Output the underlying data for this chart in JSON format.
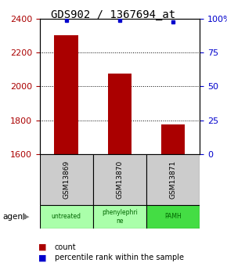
{
  "title": "GDS902 / 1367694_at",
  "categories": [
    "GSM13869",
    "GSM13870",
    "GSM13871"
  ],
  "bar_values": [
    2305,
    2075,
    1775
  ],
  "percentile_values": [
    99.0,
    99.0,
    97.5
  ],
  "ylim_left": [
    1600,
    2400
  ],
  "ylim_right": [
    0,
    100
  ],
  "yticks_left": [
    1600,
    1800,
    2000,
    2200,
    2400
  ],
  "yticks_right": [
    0,
    25,
    50,
    75,
    100
  ],
  "ytick_labels_right": [
    "0",
    "25",
    "50",
    "75",
    "100%"
  ],
  "bar_color": "#aa0000",
  "dot_color": "#0000cc",
  "bar_width": 0.45,
  "agent_labels": [
    "untreated",
    "phenylephri\nne",
    "PAMH"
  ],
  "agent_colors": [
    "#aaffaa",
    "#aaffaa",
    "#44dd44"
  ],
  "agent_text_color": [
    "#006600",
    "#006600",
    "#006600"
  ],
  "gsm_bg_color": "#cccccc",
  "background_color": "#ffffff",
  "plot_bg_color": "#ffffff",
  "title_fontsize": 10,
  "tick_fontsize": 8,
  "label_fontsize": 7,
  "legend_fontsize": 7
}
